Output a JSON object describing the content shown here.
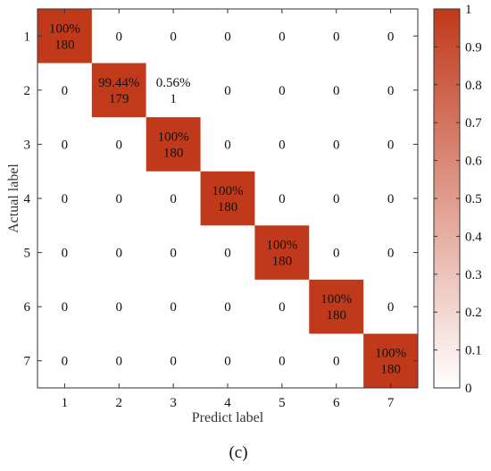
{
  "chart_data": {
    "type": "heatmap",
    "xlabel": "Predict label",
    "ylabel": "Actual label",
    "x_categories": [
      "1",
      "2",
      "3",
      "4",
      "5",
      "6",
      "7"
    ],
    "y_categories": [
      "1",
      "2",
      "3",
      "4",
      "5",
      "6",
      "7"
    ],
    "cells": [
      [
        {
          "pct": "100%",
          "count": "180",
          "value": 1.0
        },
        {
          "pct": "",
          "count": "0",
          "value": 0
        },
        {
          "pct": "",
          "count": "0",
          "value": 0
        },
        {
          "pct": "",
          "count": "0",
          "value": 0
        },
        {
          "pct": "",
          "count": "0",
          "value": 0
        },
        {
          "pct": "",
          "count": "0",
          "value": 0
        },
        {
          "pct": "",
          "count": "0",
          "value": 0
        }
      ],
      [
        {
          "pct": "",
          "count": "0",
          "value": 0
        },
        {
          "pct": "99.44%",
          "count": "179",
          "value": 0.9944
        },
        {
          "pct": "0.56%",
          "count": "1",
          "value": 0.0056
        },
        {
          "pct": "",
          "count": "0",
          "value": 0
        },
        {
          "pct": "",
          "count": "0",
          "value": 0
        },
        {
          "pct": "",
          "count": "0",
          "value": 0
        },
        {
          "pct": "",
          "count": "0",
          "value": 0
        }
      ],
      [
        {
          "pct": "",
          "count": "0",
          "value": 0
        },
        {
          "pct": "",
          "count": "0",
          "value": 0
        },
        {
          "pct": "100%",
          "count": "180",
          "value": 1.0
        },
        {
          "pct": "",
          "count": "0",
          "value": 0
        },
        {
          "pct": "",
          "count": "0",
          "value": 0
        },
        {
          "pct": "",
          "count": "0",
          "value": 0
        },
        {
          "pct": "",
          "count": "0",
          "value": 0
        }
      ],
      [
        {
          "pct": "",
          "count": "0",
          "value": 0
        },
        {
          "pct": "",
          "count": "0",
          "value": 0
        },
        {
          "pct": "",
          "count": "0",
          "value": 0
        },
        {
          "pct": "100%",
          "count": "180",
          "value": 1.0
        },
        {
          "pct": "",
          "count": "0",
          "value": 0
        },
        {
          "pct": "",
          "count": "0",
          "value": 0
        },
        {
          "pct": "",
          "count": "0",
          "value": 0
        }
      ],
      [
        {
          "pct": "",
          "count": "0",
          "value": 0
        },
        {
          "pct": "",
          "count": "0",
          "value": 0
        },
        {
          "pct": "",
          "count": "0",
          "value": 0
        },
        {
          "pct": "",
          "count": "0",
          "value": 0
        },
        {
          "pct": "100%",
          "count": "180",
          "value": 1.0
        },
        {
          "pct": "",
          "count": "0",
          "value": 0
        },
        {
          "pct": "",
          "count": "0",
          "value": 0
        }
      ],
      [
        {
          "pct": "",
          "count": "0",
          "value": 0
        },
        {
          "pct": "",
          "count": "0",
          "value": 0
        },
        {
          "pct": "",
          "count": "0",
          "value": 0
        },
        {
          "pct": "",
          "count": "0",
          "value": 0
        },
        {
          "pct": "",
          "count": "0",
          "value": 0
        },
        {
          "pct": "100%",
          "count": "180",
          "value": 1.0
        },
        {
          "pct": "",
          "count": "0",
          "value": 0
        }
      ],
      [
        {
          "pct": "",
          "count": "0",
          "value": 0
        },
        {
          "pct": "",
          "count": "0",
          "value": 0
        },
        {
          "pct": "",
          "count": "0",
          "value": 0
        },
        {
          "pct": "",
          "count": "0",
          "value": 0
        },
        {
          "pct": "",
          "count": "0",
          "value": 0
        },
        {
          "pct": "",
          "count": "0",
          "value": 0
        },
        {
          "pct": "100%",
          "count": "180",
          "value": 1.0
        }
      ]
    ],
    "colorbar": {
      "range": [
        0,
        1
      ],
      "ticks": [
        "0",
        "0.1",
        "0.2",
        "0.3",
        "0.4",
        "0.5",
        "0.6",
        "0.7",
        "0.8",
        "0.9",
        "1"
      ],
      "color_low": "#ffffff",
      "color_high": "#c0391a"
    }
  },
  "caption": "(c)"
}
